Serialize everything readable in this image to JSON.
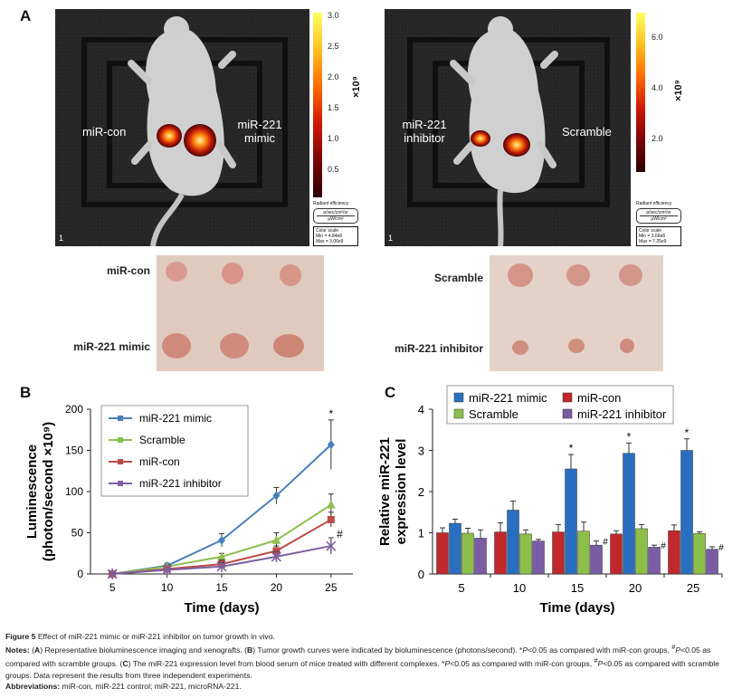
{
  "panels": {
    "a": "A",
    "b": "B",
    "c": "C"
  },
  "panel_a": {
    "left_image": {
      "label_left": "miR-con",
      "label_right_line1": "miR-221",
      "label_right_line2": "mimic",
      "corner": "1",
      "colorbar_ticks": [
        "3.0",
        "2.5",
        "2.0",
        "1.5",
        "1.0",
        "0.5"
      ],
      "colorbar_unit": "×10⁹",
      "legend_title": "Radiant efficiency",
      "legend_unit_line1": "p/sec/cm²/sr",
      "legend_unit_line2": "µW/cm²",
      "scale_title": "Color scale",
      "scale_min": "Min = 4.84e8",
      "scale_max": "Max = 3.06e9"
    },
    "right_image": {
      "label_left_line1": "miR-221",
      "label_left_line2": "inhibitor",
      "label_right": "Scramble",
      "corner": "1",
      "colorbar_ticks": [
        "6.0",
        "4.0",
        "2.0"
      ],
      "colorbar_unit": "×10⁹",
      "legend_title": "Radiant efficiency",
      "legend_unit_line1": "p/sec/cm²/sr",
      "legend_unit_line2": "µW/cm²",
      "scale_title": "Color scale",
      "scale_min": "Min = 3.66e8",
      "scale_max": "Max = 7.25e9"
    },
    "tumor_labels": {
      "left_top": "miR-con",
      "left_bottom": "miR-221 mimic",
      "right_top": "Scramble",
      "right_bottom": "miR-221 inhibitor"
    }
  },
  "chart_data": [
    {
      "type": "line",
      "panel": "B",
      "xlabel": "Time (days)",
      "ylabel_line1": "Luminescence",
      "ylabel_line2": "(photon/second ×10⁹)",
      "x": [
        5,
        10,
        15,
        20,
        25
      ],
      "xticks": [
        "5",
        "10",
        "15",
        "20",
        "25"
      ],
      "yticks": [
        "0",
        "50",
        "100",
        "150",
        "200"
      ],
      "ylim": [
        0,
        200
      ],
      "xlim": [
        3,
        27
      ],
      "legend_position": "top-left",
      "series": [
        {
          "name": "miR-221 mimic",
          "color": "#4a7ebb",
          "marker": "diamond",
          "values": [
            0,
            10,
            41,
            95,
            157
          ],
          "errors": [
            1,
            3,
            8,
            10,
            30
          ]
        },
        {
          "name": "Scramble",
          "color": "#8dbf4e",
          "marker": "triangle",
          "values": [
            0,
            9,
            21,
            41,
            84
          ],
          "errors": [
            1,
            2,
            4,
            9,
            13
          ]
        },
        {
          "name": "miR-con",
          "color": "#be4b48",
          "marker": "square",
          "values": [
            0,
            6,
            12,
            28,
            66
          ],
          "errors": [
            1,
            2,
            5,
            6,
            9
          ]
        },
        {
          "name": "miR-221 inhibitor",
          "color": "#7d60a0",
          "marker": "star",
          "values": [
            0,
            5,
            9,
            21,
            34
          ],
          "errors": [
            1,
            2,
            5,
            6,
            10
          ]
        }
      ],
      "annotations": [
        {
          "text": "*",
          "x": 25,
          "y": 190
        },
        {
          "text": "#",
          "x": 25.8,
          "y": 44
        }
      ]
    },
    {
      "type": "bar",
      "panel": "C",
      "xlabel": "Time (days)",
      "ylabel_line1": "Relative miR-221",
      "ylabel_line2": "expression level",
      "categories": [
        "5",
        "10",
        "15",
        "20",
        "25"
      ],
      "yticks": [
        "0",
        "1",
        "2",
        "3",
        "4"
      ],
      "ylim": [
        0,
        4
      ],
      "legend_position": "top",
      "series": [
        {
          "name": "miR-con",
          "color": "#c0282d",
          "values": [
            1.0,
            1.02,
            1.02,
            0.97,
            1.05
          ],
          "errors": [
            0.12,
            0.22,
            0.18,
            0.08,
            0.14
          ]
        },
        {
          "name": "miR-221 mimic",
          "color": "#2a6fbf",
          "values": [
            1.23,
            1.55,
            2.55,
            2.93,
            3.0
          ],
          "errors": [
            0.1,
            0.22,
            0.35,
            0.25,
            0.28
          ]
        },
        {
          "name": "Scramble",
          "color": "#8cbf4a",
          "values": [
            0.99,
            0.97,
            1.04,
            1.1,
            0.98
          ],
          "errors": [
            0.12,
            0.1,
            0.22,
            0.1,
            0.04
          ]
        },
        {
          "name": "miR-221 inhibitor",
          "color": "#7a5ca4",
          "values": [
            0.87,
            0.8,
            0.7,
            0.65,
            0.6
          ],
          "errors": [
            0.2,
            0.04,
            0.1,
            0.05,
            0.06
          ]
        }
      ],
      "legend_order": [
        "miR-221 mimic",
        "miR-con",
        "Scramble",
        "miR-221 inhibitor"
      ],
      "star_marks": [
        "*",
        "*",
        "*"
      ],
      "hash_marks": [
        "#",
        "#",
        "#"
      ]
    }
  ],
  "caption": {
    "title_bold": "Figure 5",
    "title_rest": " Effect of miR-221 mimic or miR-221 inhibitor on tumor growth in vivo.",
    "notes_bold": "Notes:",
    "notes_1": " (",
    "notes_a": "A",
    "notes_2": ") Representative bioluminescence imaging and xenografts. (",
    "notes_b": "B",
    "notes_3": ") Tumor growth curves were indicated by bioluminescence (photons/second). *",
    "p1": "P",
    "notes_4": "<0.05 as compared with miR-con groups, ",
    "hash1": "#",
    "p2": "P",
    "notes_5": "<0.05 as compared with scramble groups. (",
    "notes_c": "C",
    "notes_6": ") The miR-221 expression level from blood serum of mice treated with different complexes. *",
    "p3": "P",
    "notes_7": "<0.05 as compared with miR-con groups, ",
    "hash2": "#",
    "p4": "P",
    "notes_8": "<0.05 as compared with scramble groups. Data represent the results from three independent experiments.",
    "abbr_bold": "Abbreviations:",
    "abbr_text": " miR-con, miR-221 control; miR-221, microRNA-221."
  }
}
